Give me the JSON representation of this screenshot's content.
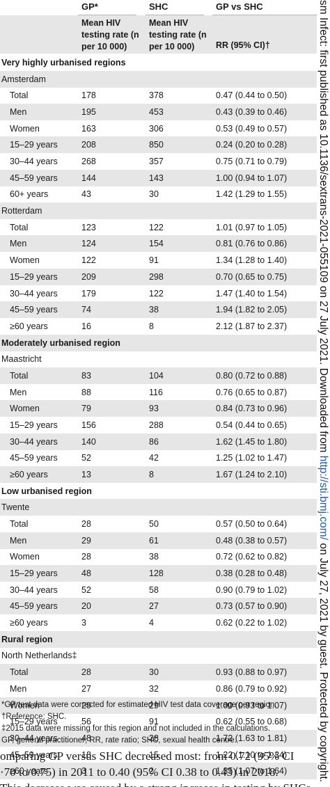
{
  "header": {
    "gp_label": "GP*",
    "shc_label": "SHC",
    "comparison_label": "GP vs SHC",
    "gp_measure": [
      "Mean HIV",
      "testing rate (n",
      "per 10 000)"
    ],
    "shc_measure": [
      "Mean HIV",
      "testing rate (n",
      "per 10 000)"
    ],
    "rr_label": "RR (95% CI)†"
  },
  "rows": [
    {
      "type": "region",
      "label": "Very highly urbanised regions"
    },
    {
      "type": "sub",
      "label": "Amsterdam"
    },
    {
      "type": "data",
      "label": "Total",
      "gp": "178",
      "shc": "378",
      "rr": "0.47 (0.44 to 0.50)"
    },
    {
      "type": "data",
      "label": "Men",
      "gp": "195",
      "shc": "453",
      "rr": "0.43 (0.39 to 0.46)"
    },
    {
      "type": "data",
      "label": "Women",
      "gp": "163",
      "shc": "306",
      "rr": "0.53 (0.49 to 0.57)"
    },
    {
      "type": "data",
      "label": "15–29 years",
      "gp": "208",
      "shc": "850",
      "rr": "0.24 (0.20 to 0.28)"
    },
    {
      "type": "data",
      "label": "30–44 years",
      "gp": "268",
      "shc": "357",
      "rr": "0.75 (0.71 to 0.79)"
    },
    {
      "type": "data",
      "label": "45–59 years",
      "gp": "144",
      "shc": "143",
      "rr": "1.00 (0.94 to 1.07)"
    },
    {
      "type": "data",
      "label": "60+ years",
      "gp": "43",
      "shc": "30",
      "rr": "1.42 (1.29 to 1.55)"
    },
    {
      "type": "sub",
      "label": "Rotterdam"
    },
    {
      "type": "data",
      "label": "Total",
      "gp": "123",
      "shc": "122",
      "rr": "1.01 (0.97 to 1.05)"
    },
    {
      "type": "data",
      "label": "Men",
      "gp": "124",
      "shc": "154",
      "rr": "0.81 (0.76 to 0.86)"
    },
    {
      "type": "data",
      "label": "Women",
      "gp": "122",
      "shc": "91",
      "rr": "1.34 (1.28 to 1.40)"
    },
    {
      "type": "data",
      "label": "15–29 years",
      "gp": "209",
      "shc": "298",
      "rr": "0.70 (0.65 to 0.75)"
    },
    {
      "type": "data",
      "label": "30–44 years",
      "gp": "179",
      "shc": "122",
      "rr": "1.47 (1.40 to 1.54)"
    },
    {
      "type": "data",
      "label": "45–59 years",
      "gp": "74",
      "shc": "38",
      "rr": "1.94 (1.82 to 2.05)"
    },
    {
      "type": "data",
      "label": "≥60 years",
      "gp": "16",
      "shc": "8",
      "rr": "2.12 (1.87 to 2.37)"
    },
    {
      "type": "region",
      "label": "Moderately urbanised region"
    },
    {
      "type": "sub",
      "label": "Maastricht"
    },
    {
      "type": "data",
      "label": "Total",
      "gp": "83",
      "shc": "104",
      "rr": "0.80 (0.72 to 0.88)"
    },
    {
      "type": "data",
      "label": "Men",
      "gp": "88",
      "shc": "116",
      "rr": "0.76 (0.65 to 0.87)"
    },
    {
      "type": "data",
      "label": "Women",
      "gp": "79",
      "shc": "93",
      "rr": "0.84 (0.73 to 0.96)"
    },
    {
      "type": "data",
      "label": "15–29 years",
      "gp": "156",
      "shc": "288",
      "rr": "0.54 (0.44 to 0.65)"
    },
    {
      "type": "data",
      "label": "30–44 years",
      "gp": "140",
      "shc": "86",
      "rr": "1.62 (1.45 to 1.80)"
    },
    {
      "type": "data",
      "label": "45–59 years",
      "gp": "52",
      "shc": "42",
      "rr": "1.25 (1.02 to 1.47)"
    },
    {
      "type": "data",
      "label": "≥60 years",
      "gp": "13",
      "shc": "8",
      "rr": "1.67 (1.24 to 2.10)"
    },
    {
      "type": "region",
      "label": "Low urbanised region"
    },
    {
      "type": "sub",
      "label": "Twente"
    },
    {
      "type": "data",
      "label": "Total",
      "gp": "28",
      "shc": "50",
      "rr": "0.57 (0.50 to 0.64)"
    },
    {
      "type": "data",
      "label": "Men",
      "gp": "29",
      "shc": "61",
      "rr": "0.48 (0.38 to 0.57)"
    },
    {
      "type": "data",
      "label": "Women",
      "gp": "28",
      "shc": "38",
      "rr": "0.72 (0.62 to 0.82)"
    },
    {
      "type": "data",
      "label": "15–29 years",
      "gp": "48",
      "shc": "128",
      "rr": "0.38 (0.28 to 0.48)"
    },
    {
      "type": "data",
      "label": "30–44 years",
      "gp": "52",
      "shc": "58",
      "rr": "0.90 (0.79 to 1.02)"
    },
    {
      "type": "data",
      "label": "45–59 years",
      "gp": "20",
      "shc": "27",
      "rr": "0.73 (0.57 to 0.90)"
    },
    {
      "type": "data",
      "label": "≥60 years",
      "gp": "3",
      "shc": "4",
      "rr": "0.62 (0.22 to 1.02)"
    },
    {
      "type": "region",
      "label": "Rural region"
    },
    {
      "type": "sub",
      "label": "North Netherlands‡"
    },
    {
      "type": "data",
      "label": "Total",
      "gp": "28",
      "shc": "30",
      "rr": "0.93 (0.88 to 0.97)"
    },
    {
      "type": "data",
      "label": "Men",
      "gp": "27",
      "shc": "32",
      "rr": "0.86 (0.79 to 0.92)"
    },
    {
      "type": "data",
      "label": "Women",
      "gp": "29",
      "shc": "29",
      "rr": "1.00 (0.93 to 1.07)"
    },
    {
      "type": "data",
      "label": "15–29 years",
      "gp": "56",
      "shc": "91",
      "rr": "0.62 (0.55 to 0.68)"
    },
    {
      "type": "data",
      "label": "30–44 years",
      "gp": "48",
      "shc": "28",
      "rr": "1.72 (1.63 to 1.81)"
    },
    {
      "type": "data",
      "label": "45–59 years",
      "gp": "18",
      "shc": "15",
      "rr": "1.22 (1.10 to 1.34)"
    },
    {
      "type": "data",
      "label": "≥60 years",
      "gp": "3",
      "shc": "2",
      "rr": "1.35 (1.07 to 1.64)"
    }
  ],
  "notes": [
    "*GP test data were corrected for estimated HIV test data coverage per region.",
    "†Reference: SHC.",
    "‡2015 data were missing for this region and not included in the calculations.",
    "GP, general practitioner; RR, rate ratio; SHC, sexual health centre."
  ],
  "body_text": [
    "omparing GP versus SHC decreased most: from 0.72 (95% CI",
    "·70 to 0.75) in 2011 to 0.40 (95% CI 0.38 to 0.43) in 2018.",
    "This decrease was caused by a strong increase in testing by SHCs"
  ],
  "sidebar": {
    "prefix": "sm Infect: first published as 10.1136/sextrans-2021-055109 on 27 July 2021. Downloaded from ",
    "link": "http://sti.bmj.com/",
    "suffix": " on July 27, 2021 by guest. Protected by copyright."
  }
}
